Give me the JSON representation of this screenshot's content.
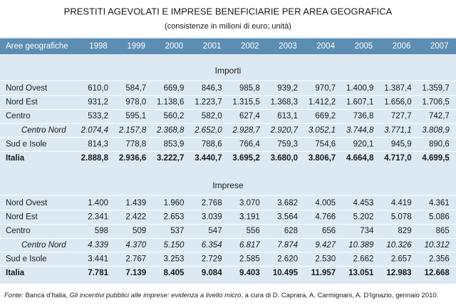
{
  "title": "PRESTITI AGEVOLATI E IMPRESE BENEFICIARIE PER AREA GEOGRAFICA",
  "subtitle": "(consistenze in milioni di euro; unità)",
  "header": [
    "Aree geografiche",
    "1998",
    "1999",
    "2000",
    "2001",
    "2002",
    "2003",
    "2004",
    "2005",
    "2006",
    "2007"
  ],
  "sections": [
    {
      "title": "Importi",
      "rows": [
        [
          "Nord Ovest",
          "610,0",
          "584,7",
          "669,9",
          "846,3",
          "985,8",
          "939,2",
          "970,7",
          "1.400,9",
          "1.387,4",
          "1.359,7"
        ],
        [
          "Nord Est",
          "931,2",
          "978,0",
          "1.138,6",
          "1.223,7",
          "1.315,5",
          "1.368,3",
          "1.412,2",
          "1.607,1",
          "1.656,0",
          "1.706,5"
        ],
        [
          "Centro",
          "533,2",
          "595,1",
          "560,2",
          "582,0",
          "627,4",
          "613,1",
          "669,2",
          "736,8",
          "727,7",
          "742,7"
        ],
        [
          "Centro Nord",
          "2.074,4",
          "2.157,8",
          "2.368,8",
          "2.652,0",
          "2.928,7",
          "2.920,7",
          "3.052,1",
          "3.744,8",
          "3.771,1",
          "3.808,9"
        ],
        [
          "Sud e Isole",
          "814,3",
          "778,8",
          "853,9",
          "788,6",
          "766,4",
          "759,3",
          "754,6",
          "920,1",
          "945,9",
          "890,6"
        ],
        [
          "Italia",
          "2.888,8",
          "2.936,6",
          "3.222,7",
          "3.440,7",
          "3.695,2",
          "3.680,0",
          "3.806,7",
          "4.664,8",
          "4.717,0",
          "4.699,5"
        ]
      ]
    },
    {
      "title": "Imprese",
      "rows": [
        [
          "Nord Ovest",
          "1.400",
          "1.439",
          "1.960",
          "2.768",
          "3.070",
          "3.682",
          "4.005",
          "4.453",
          "4.419",
          "4.361"
        ],
        [
          "Nord Est",
          "2.341",
          "2.422",
          "2.653",
          "3.039",
          "3.191",
          "3.564",
          "4.766",
          "5.202",
          "5.078",
          "5.086"
        ],
        [
          "Centro",
          "598",
          "509",
          "537",
          "547",
          "556",
          "628",
          "656",
          "734",
          "829",
          "865"
        ],
        [
          "Centro Nord",
          "4.339",
          "4.370",
          "5.150",
          "6.354",
          "6.817",
          "7.874",
          "9.427",
          "10.389",
          "10.326",
          "10.312"
        ],
        [
          "Sud e Isole",
          "3.441",
          "2.767",
          "3.253",
          "2.729",
          "2.585",
          "2.620",
          "2.530",
          "2.662",
          "2.657",
          "2.356"
        ],
        [
          "Italia",
          "7.781",
          "7.139",
          "8.405",
          "9.084",
          "9.403",
          "10.495",
          "11.957",
          "13.051",
          "12.983",
          "12.668"
        ]
      ]
    }
  ],
  "footer": [
    "Fonte:",
    " Banca d'Italia, ",
    "Gli incentivi pubblici alle imprese: evidenza a livello micro",
    ", a cura di D. Caprara, A. Carmignani, A. D'Ignazio, gennaio 2010."
  ]
}
